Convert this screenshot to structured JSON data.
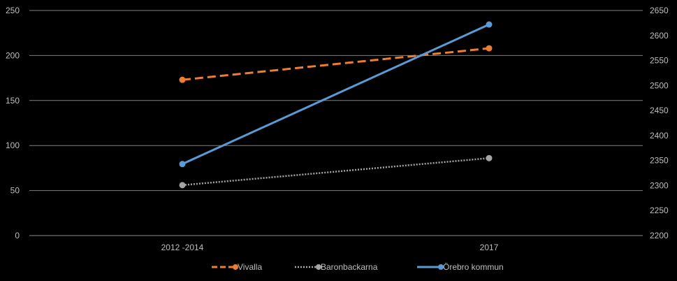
{
  "chart_data": {
    "type": "line",
    "categories": [
      "2012 -2014",
      "2017"
    ],
    "y_left": {
      "min": 0,
      "max": 250,
      "ticks": [
        0,
        50,
        100,
        150,
        200,
        250
      ]
    },
    "y_right": {
      "min": 2200,
      "max": 2650,
      "ticks": [
        2200,
        2250,
        2300,
        2350,
        2400,
        2450,
        2500,
        2550,
        2600,
        2650
      ]
    },
    "grid": true,
    "legend_position": "bottom",
    "series": [
      {
        "name": "Vivalla",
        "axis": "left",
        "values": [
          173,
          208
        ],
        "color": "#ED7D31",
        "dash": "dashed"
      },
      {
        "name": "Baronbackarna",
        "axis": "left",
        "values": [
          56,
          86
        ],
        "color": "#A5A5A5",
        "dash": "dotted"
      },
      {
        "name": "Örebro kommun",
        "axis": "right",
        "values": [
          2343,
          2622
        ],
        "color": "#5B9BD5",
        "dash": "solid"
      }
    ]
  }
}
